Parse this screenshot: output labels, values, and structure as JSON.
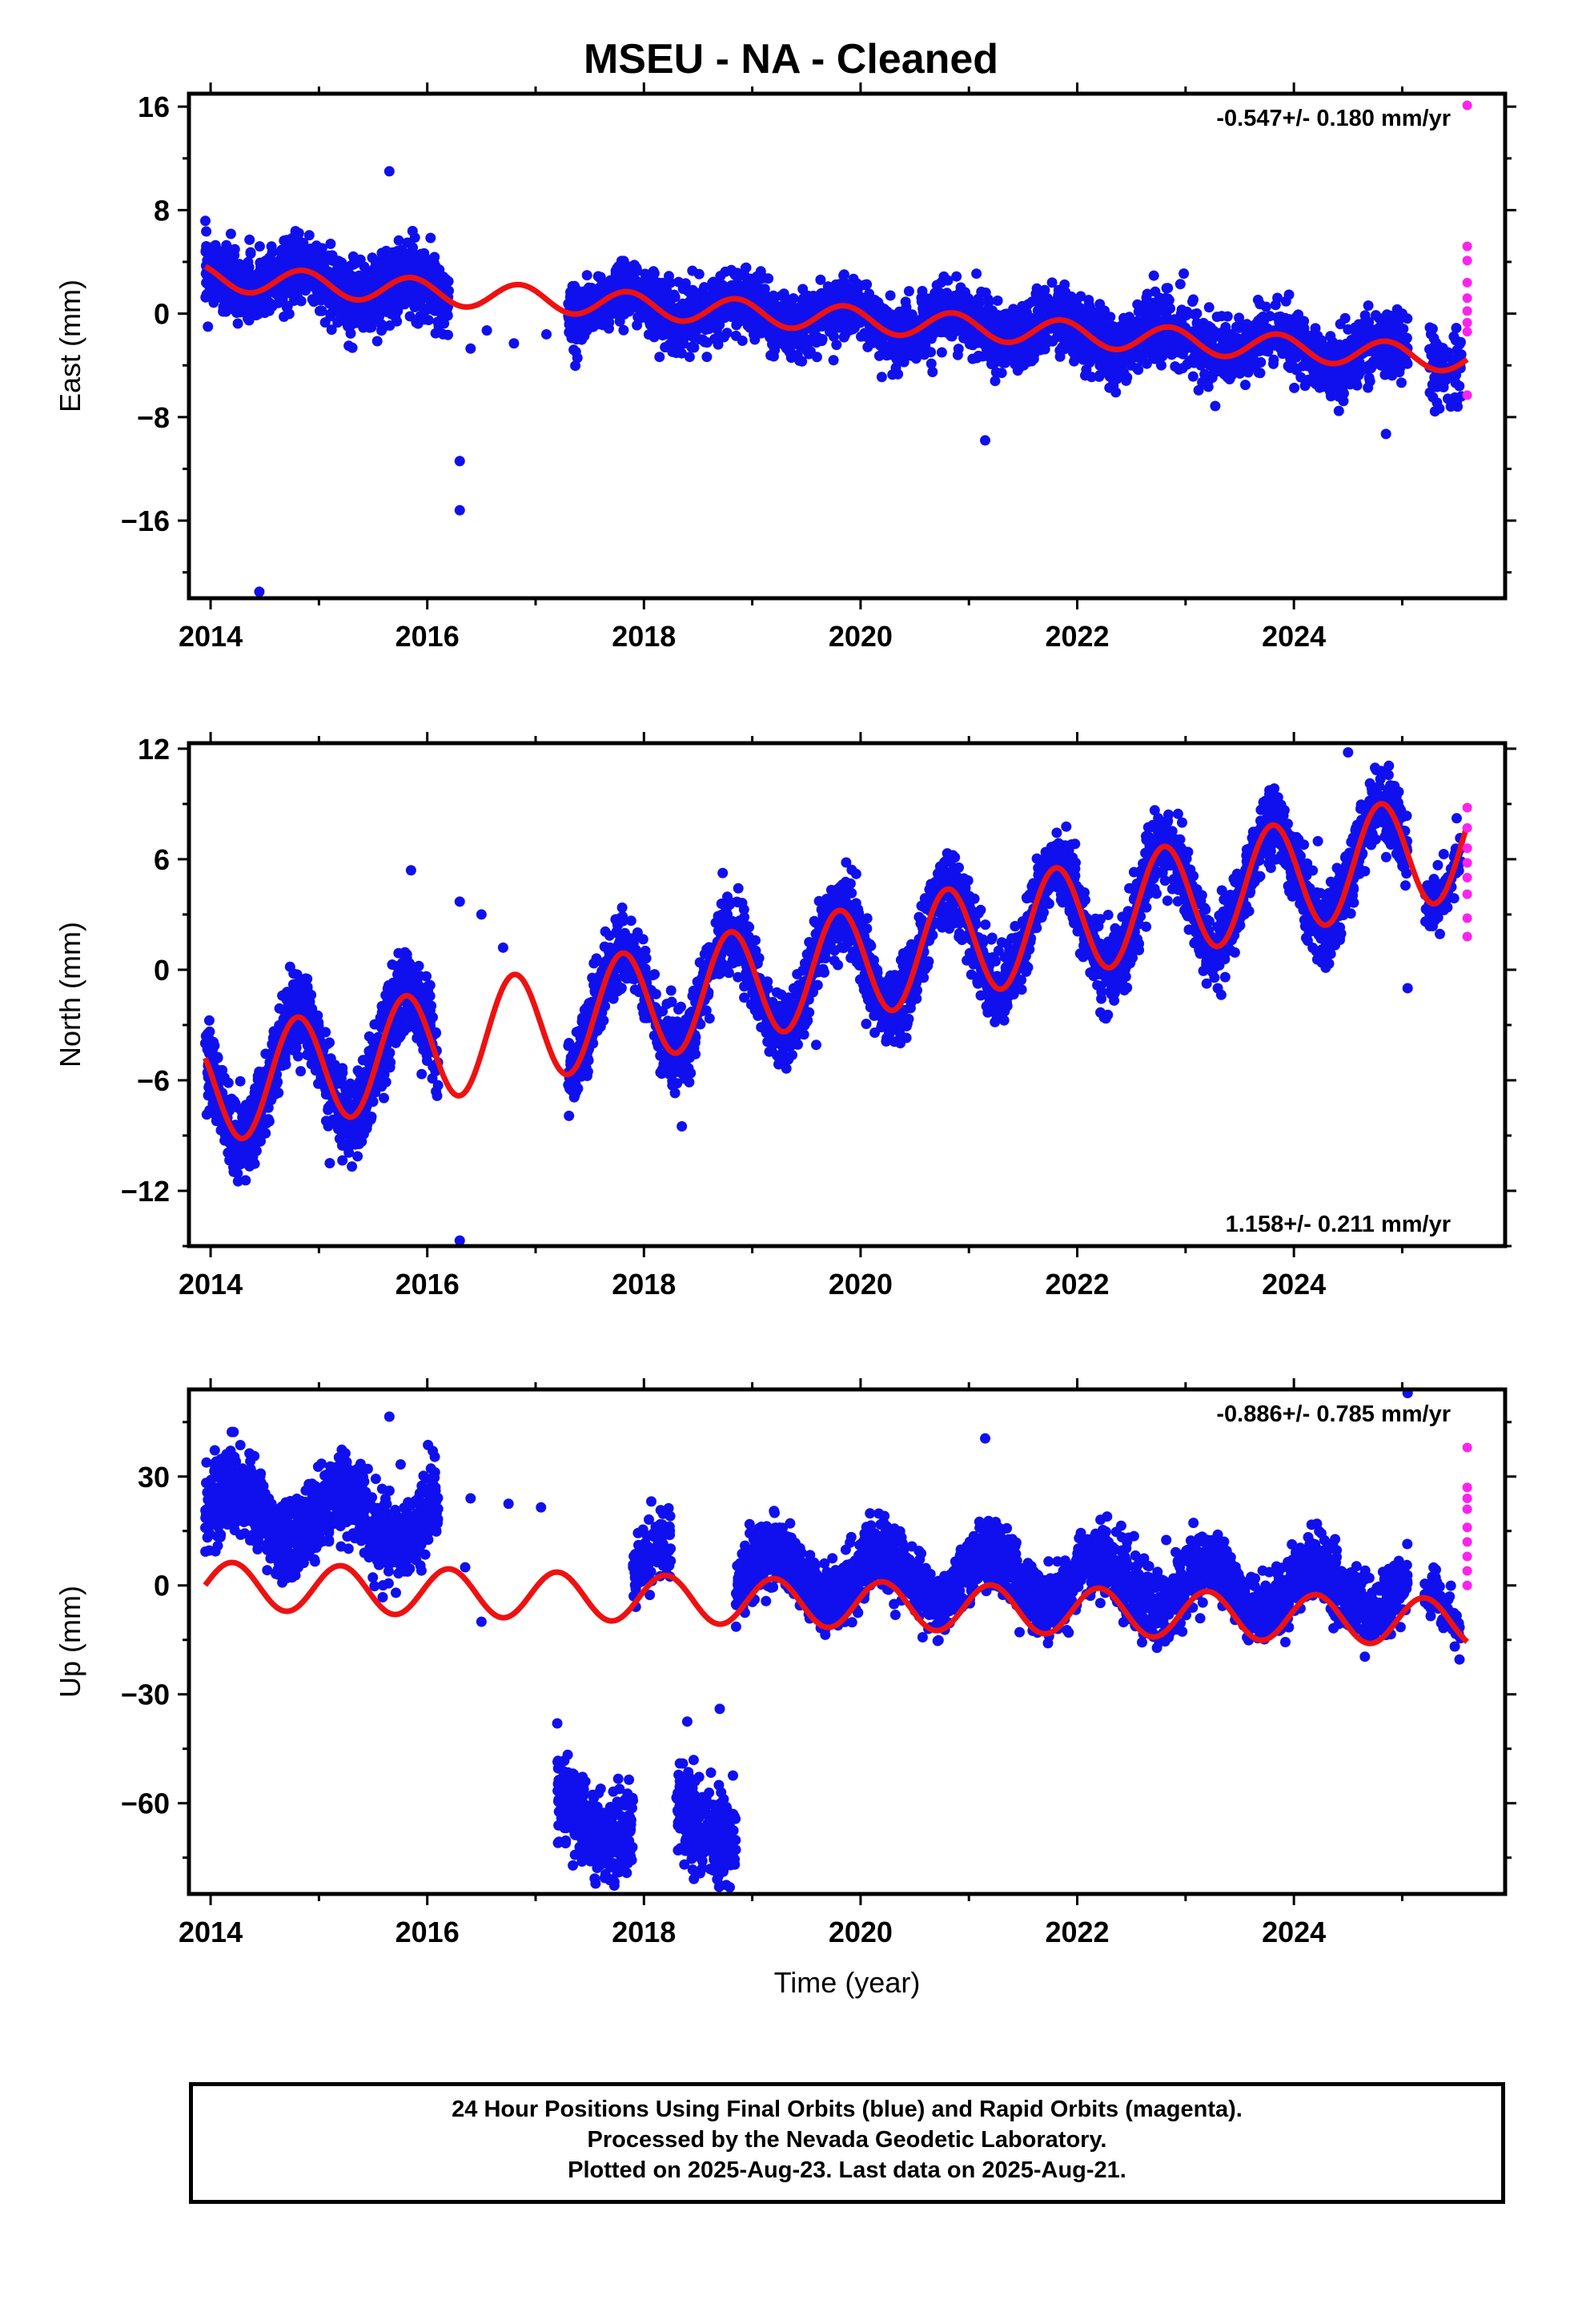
{
  "title": "MSEU  - NA - Cleaned",
  "colors": {
    "final_orbits": "#1010ee",
    "rapid_orbits": "#ff22ee",
    "model": "#ee1111",
    "frame": "#000000"
  },
  "x_axis": {
    "label": "Time (year)",
    "range": [
      2013.8,
      2025.95
    ],
    "ticks": [
      2014,
      2016,
      2018,
      2020,
      2022,
      2024
    ]
  },
  "chart_data": [
    {
      "type": "scatter",
      "component": "east",
      "ylabel": "East (mm)",
      "ylim": [
        -22,
        17
      ],
      "yticks": [
        16,
        8,
        0,
        -8,
        -16
      ],
      "rate": "-0.547+/- 0.180 mm/yr",
      "rate_position": "top-right",
      "trend": {
        "offset": 2.8,
        "slope": -0.547,
        "annual_amp": 1.0,
        "annual_phase": 0.6
      },
      "model_gap": [
        2016.8,
        2017.1
      ],
      "clusters": [
        {
          "from": 2013.95,
          "to": 2016.2,
          "sd": 1.3,
          "n": 1200,
          "series": "final"
        },
        {
          "from": 2017.3,
          "to": 2019.3,
          "sd": 1.2,
          "n": 950,
          "series": "final"
        },
        {
          "from": 2019.3,
          "to": 2025.05,
          "sd": 1.2,
          "n": 2600,
          "series": "final"
        },
        {
          "from": 2025.25,
          "to": 2025.55,
          "sd": 1.4,
          "n": 80,
          "series": "final"
        }
      ],
      "outliers": [
        {
          "x": 2015.65,
          "y": 11.0
        },
        {
          "x": 2014.45,
          "y": -21.5
        },
        {
          "x": 2016.3,
          "y": -11.4
        },
        {
          "x": 2016.3,
          "y": -15.2
        },
        {
          "x": 2021.15,
          "y": -9.8
        },
        {
          "x": 2024.85,
          "y": -9.3
        },
        {
          "x": 2016.55,
          "y": -1.3
        },
        {
          "x": 2016.8,
          "y": -2.3
        },
        {
          "x": 2017.1,
          "y": -1.6
        },
        {
          "x": 2016.4,
          "y": -2.7
        },
        {
          "x": 2019.75,
          "y": -3.6
        },
        {
          "x": 2025.0,
          "y": 0.0
        }
      ],
      "rapid": [
        {
          "x": 2025.6,
          "y": 16.1
        },
        {
          "x": 2025.6,
          "y": 5.2
        },
        {
          "x": 2025.6,
          "y": 4.1
        },
        {
          "x": 2025.6,
          "y": 2.4
        },
        {
          "x": 2025.6,
          "y": 1.2
        },
        {
          "x": 2025.6,
          "y": 0.2
        },
        {
          "x": 2025.6,
          "y": -0.7
        },
        {
          "x": 2025.6,
          "y": -1.4
        },
        {
          "x": 2025.6,
          "y": -6.3
        }
      ]
    },
    {
      "type": "scatter",
      "component": "north",
      "ylabel": "North (mm)",
      "ylim": [
        -15,
        12.3
      ],
      "yticks": [
        12,
        6,
        0,
        -6,
        -12
      ],
      "rate": "1.158+/- 0.211 mm/yr",
      "rate_position": "bottom-right",
      "trend": {
        "offset": -6.5,
        "slope": 1.158,
        "annual_amp": 3.0,
        "annual_phase": 0.55
      },
      "model_gap": [],
      "clusters": [
        {
          "from": 2013.95,
          "to": 2016.1,
          "sd": 1.1,
          "n": 1100,
          "series": "final"
        },
        {
          "from": 2017.3,
          "to": 2025.05,
          "sd": 1.0,
          "n": 3300,
          "series": "final"
        },
        {
          "from": 2025.2,
          "to": 2025.55,
          "sd": 0.8,
          "n": 80,
          "series": "final"
        }
      ],
      "outliers": [
        {
          "x": 2016.3,
          "y": -14.7
        },
        {
          "x": 2016.3,
          "y": 3.7
        },
        {
          "x": 2016.5,
          "y": 3.0
        },
        {
          "x": 2016.7,
          "y": 1.2
        },
        {
          "x": 2015.85,
          "y": 5.4
        },
        {
          "x": 2018.35,
          "y": -8.5
        },
        {
          "x": 2015.1,
          "y": -10.5
        },
        {
          "x": 2024.5,
          "y": 11.8
        },
        {
          "x": 2025.05,
          "y": -1.0
        }
      ],
      "rapid": [
        {
          "x": 2025.6,
          "y": 8.8
        },
        {
          "x": 2025.6,
          "y": 7.7
        },
        {
          "x": 2025.6,
          "y": 6.6
        },
        {
          "x": 2025.6,
          "y": 5.8
        },
        {
          "x": 2025.6,
          "y": 5.0
        },
        {
          "x": 2025.6,
          "y": 4.1
        },
        {
          "x": 2025.6,
          "y": 2.8
        },
        {
          "x": 2025.6,
          "y": 1.8
        }
      ]
    },
    {
      "type": "scatter",
      "component": "up",
      "ylabel": "Up (mm)",
      "ylim": [
        -85,
        54
      ],
      "yticks": [
        30,
        0,
        -30,
        -60
      ],
      "rate": "-0.886+/- 0.785 mm/yr",
      "rate_position": "top-right",
      "trend": {
        "offset": 0.0,
        "slope": -0.886,
        "annual_amp": 6.5,
        "annual_phase": 0.95
      },
      "model_gap": [],
      "clusters": [
        {
          "from": 2013.95,
          "to": 2016.1,
          "sd": 5.5,
          "n": 1100,
          "series": "final",
          "base": 12
        },
        {
          "from": 2017.2,
          "to": 2017.9,
          "sd": 6.0,
          "n": 350,
          "series": "final",
          "base": -64
        },
        {
          "from": 2018.3,
          "to": 2018.85,
          "sd": 6.0,
          "n": 280,
          "series": "final",
          "base": -64
        },
        {
          "from": 2017.9,
          "to": 2018.25,
          "sd": 4.5,
          "n": 120,
          "series": "final",
          "base": 0
        },
        {
          "from": 2018.85,
          "to": 2025.05,
          "sd": 4.5,
          "n": 2800,
          "series": "final",
          "base": 0
        },
        {
          "from": 2025.2,
          "to": 2025.55,
          "sd": 3.5,
          "n": 80,
          "series": "final",
          "base": -7
        }
      ],
      "outliers": [
        {
          "x": 2015.65,
          "y": 46.5
        },
        {
          "x": 2021.15,
          "y": 40.5
        },
        {
          "x": 2025.05,
          "y": 53.0
        },
        {
          "x": 2016.4,
          "y": 24.0
        },
        {
          "x": 2016.75,
          "y": 22.5
        },
        {
          "x": 2017.05,
          "y": 21.5
        },
        {
          "x": 2017.2,
          "y": -38.0
        },
        {
          "x": 2018.4,
          "y": -37.5
        },
        {
          "x": 2018.7,
          "y": -34.0
        },
        {
          "x": 2016.5,
          "y": -10.0
        },
        {
          "x": 2016.35,
          "y": 5.0
        }
      ],
      "rapid": [
        {
          "x": 2025.6,
          "y": 38.0
        },
        {
          "x": 2025.6,
          "y": 27.0
        },
        {
          "x": 2025.6,
          "y": 24.0
        },
        {
          "x": 2025.6,
          "y": 21.0
        },
        {
          "x": 2025.6,
          "y": 16.0
        },
        {
          "x": 2025.6,
          "y": 12.0
        },
        {
          "x": 2025.6,
          "y": 8.0
        },
        {
          "x": 2025.6,
          "y": 4.0
        },
        {
          "x": 2025.6,
          "y": 0.0
        }
      ]
    }
  ],
  "footer": {
    "line1": "24 Hour Positions Using Final Orbits (blue) and Rapid Orbits (magenta).",
    "line2": "Processed by the Nevada Geodetic Laboratory.",
    "line3": "Plotted on 2025-Aug-23. Last data on 2025-Aug-21."
  }
}
